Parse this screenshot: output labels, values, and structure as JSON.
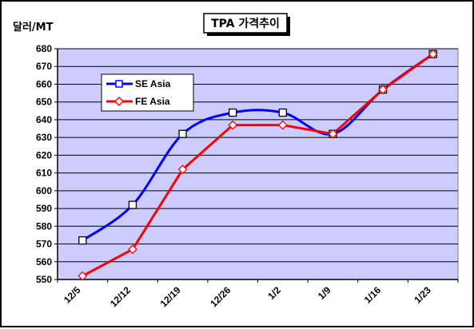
{
  "chart_data": {
    "type": "line",
    "title": "TPA 가격추이",
    "ylabel": "달러/MT",
    "xlabel": "",
    "categories": [
      "12/5",
      "12/12",
      "12/19",
      "12/26",
      "1/2",
      "1/9",
      "1/16",
      "1/23"
    ],
    "yticks": [
      550,
      560,
      570,
      580,
      590,
      600,
      610,
      620,
      630,
      640,
      650,
      660,
      670,
      680
    ],
    "ylim": [
      550,
      680
    ],
    "grid": true,
    "legend_position": "top-left",
    "series": [
      {
        "name": "SE Asia",
        "color": "#0000ff",
        "marker": "square",
        "values": [
          572,
          592,
          632,
          644,
          644,
          632,
          657,
          677
        ]
      },
      {
        "name": "FE Asia",
        "color": "#ff0000",
        "marker": "diamond",
        "values": [
          552,
          567,
          612,
          637,
          637,
          632,
          657,
          677
        ]
      }
    ],
    "plot_background": "#ccccff"
  }
}
